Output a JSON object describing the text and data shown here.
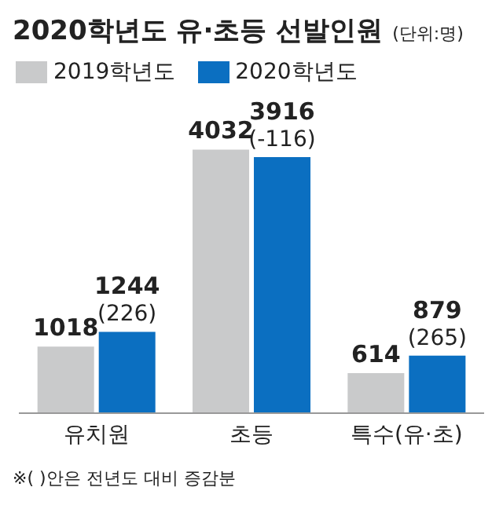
{
  "chart_data": {
    "type": "bar",
    "title": "2020학년도 유·초등 선발인원",
    "subtitle": "(단위:명)",
    "categories": [
      "유치원",
      "초등",
      "특수(유·초)"
    ],
    "series": [
      {
        "name": "2019학년도",
        "color": "#c9cacb",
        "values": [
          1018,
          4032,
          614
        ]
      },
      {
        "name": "2020학년도",
        "color": "#0b6fc1",
        "values": [
          1244,
          3916,
          879
        ]
      }
    ],
    "data_labels": true,
    "legend": "top left",
    "grid": false,
    "annotations": [
      {
        "text": "(226)",
        "x": "유치원",
        "y": 1244
      },
      {
        "text": "(-116)",
        "x": "초등",
        "y": 3916
      },
      {
        "text": "(265)",
        "x": "특수(유·초)",
        "y": 879
      },
      "※( )안은 전년도 대비 증감분"
    ]
  }
}
